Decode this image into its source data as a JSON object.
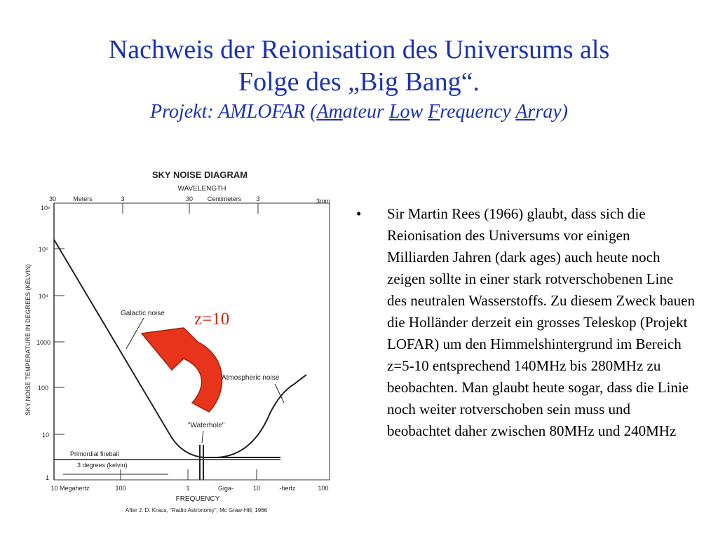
{
  "title": {
    "line1": "Nachweis der Reionisation des Universums als",
    "line2": "Folge des „Big Bang“.",
    "line3_pre": "Projekt: AMLOFAR (",
    "am_u": "Am",
    "ateur": "ateur ",
    "lo_u": "Lo",
    "w": "w ",
    "f_u": "F",
    "requency": "requency ",
    "ar_u": "Ar",
    "ray": "ray)"
  },
  "diagram": {
    "heading": "SKY NOISE DIAGRAM",
    "wavelength_label": "WAVELENGTH",
    "top_ticks": [
      "30",
      "Meters",
      "3",
      "30",
      "Centimeters",
      "3",
      "3mm"
    ],
    "y_axis_label": "SKY NOISE TEMPERATURE IN DEGREES (KELVIN)",
    "y_ticks": [
      "10⁶",
      "10⁵",
      "10⁴",
      "1000",
      "100",
      "10",
      "1"
    ],
    "bottom_ticks": [
      "10 Megahertz",
      "100",
      "1",
      "Giga-",
      "10",
      "-hertz",
      "100"
    ],
    "x_axis_label": "FREQUENCY",
    "credit": "After J. D. Kraus, \"Radio Astronomy\", Mc Graw-Hill, 1966",
    "labels": {
      "galactic": "Galactic noise",
      "atmospheric": "Atmospheric noise",
      "waterhole": "\"Waterhole\"",
      "primordial": "Primordial fireball",
      "degrees": "3 degrees (kelvin)"
    },
    "redshift_label": "z=10",
    "arrow_color": "#e8341a",
    "arrow_dark": "#a61e0c"
  },
  "bullet": {
    "marker": "•",
    "text": "Sir Martin Rees (1966) glaubt, dass sich die Reionisation des Universums vor einigen Milliarden Jahren (dark ages) auch heute noch zeigen sollte in einer stark rotverschobenen Line des neutralen Wasserstoffs. Zu diesem Zweck bauen die Holländer derzeit ein grosses Teleskop (Projekt LOFAR) um den Himmelshintergrund im Bereich z=5-10 entsprechend 140MHz bis 280MHz zu beobachten. Man glaubt heute sogar, dass die Linie noch weiter rotverschoben sein muss und beobachtet daher zwischen 80MHz und 240MHz"
  }
}
